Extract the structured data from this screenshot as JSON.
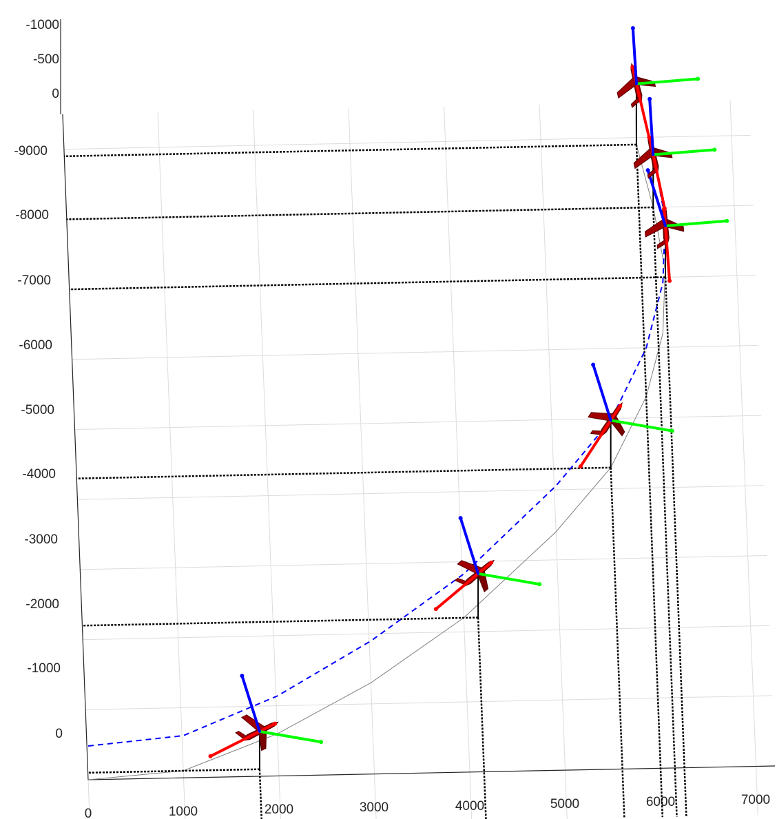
{
  "chart_data": {
    "type": "line",
    "title": "",
    "xlabel": "",
    "ylabel": "",
    "zlabel": "",
    "grid": true,
    "xlim": [
      0,
      7000
    ],
    "ylim": [
      0,
      -9500
    ],
    "zlim": [
      0,
      -1000
    ],
    "x_ticks": [
      "0",
      "1000",
      "2000",
      "3000",
      "4000",
      "5000",
      "6000",
      "7000"
    ],
    "y_ticks": [
      "0",
      "-1000",
      "-2000",
      "-3000",
      "-4000",
      "-5000",
      "-6000",
      "-7000",
      "-8000",
      "-9000"
    ],
    "z_ticks": [
      "0",
      "-500",
      "-1000"
    ],
    "series": [
      {
        "role": "trajectory",
        "line_style": "dashed",
        "color": "#0000ff",
        "points": [
          [
            0,
            0,
            -500
          ],
          [
            1000,
            -100,
            -520
          ],
          [
            2000,
            -600,
            -560
          ],
          [
            3000,
            -1300,
            -620
          ],
          [
            4000,
            -2200,
            -650
          ],
          [
            5000,
            -3400,
            -680
          ],
          [
            5600,
            -4300,
            -700
          ],
          [
            6000,
            -5300,
            -720
          ],
          [
            6200,
            -6200,
            -750
          ],
          [
            6250,
            -7100,
            -760
          ],
          [
            6150,
            -8000,
            -780
          ],
          [
            6000,
            -8900,
            -900
          ]
        ]
      },
      {
        "role": "ground-track",
        "line_style": "solid",
        "color": "#7f7f7f",
        "points": [
          [
            0,
            0,
            0
          ],
          [
            1000,
            -100,
            0
          ],
          [
            2000,
            -600,
            0
          ],
          [
            3000,
            -1300,
            0
          ],
          [
            4000,
            -2200,
            0
          ],
          [
            5000,
            -3400,
            0
          ],
          [
            5600,
            -4300,
            0
          ],
          [
            6000,
            -5300,
            0
          ],
          [
            6200,
            -6200,
            0
          ],
          [
            6250,
            -7100,
            0
          ],
          [
            6150,
            -8000,
            0
          ],
          [
            6000,
            -8900,
            0
          ]
        ]
      }
    ],
    "poses": [
      {
        "x": 1800,
        "y": -100,
        "z": -560
      },
      {
        "x": 4150,
        "y": -2200,
        "z": -650
      },
      {
        "x": 5600,
        "y": -4300,
        "z": -700
      },
      {
        "x": 6250,
        "y": -7000,
        "z": -760
      },
      {
        "x": 6150,
        "y": -8000,
        "z": -780
      },
      {
        "x": 6000,
        "y": -8900,
        "z": -900
      }
    ],
    "body_axes_colors": {
      "x_axis": "#ff0000",
      "y_axis": "#00ff00",
      "z_axis": "#0000ff"
    },
    "aircraft_color": "#8b0000"
  }
}
